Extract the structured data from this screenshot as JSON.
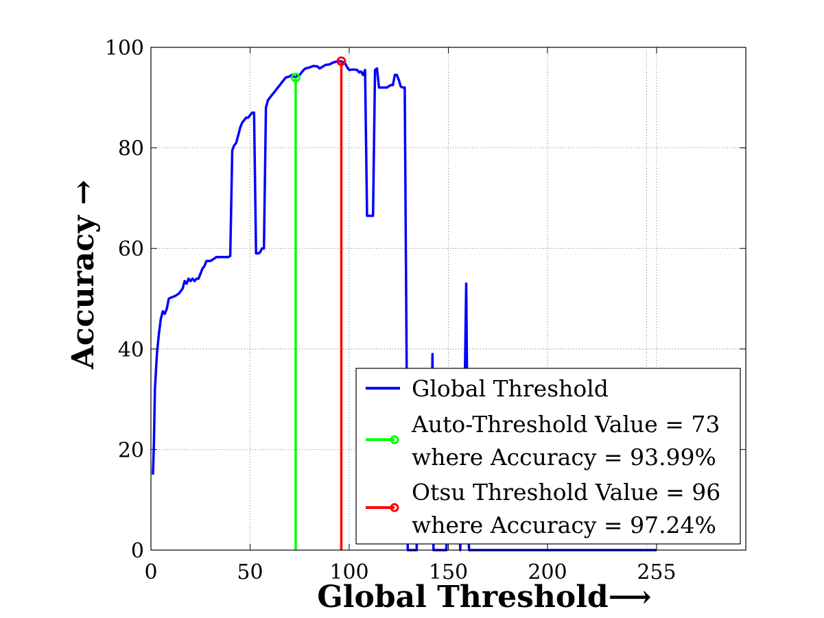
{
  "chart_data": {
    "type": "line",
    "xlabel": "Global Threshold⟶",
    "ylabel": "Accuracy →",
    "xlim": [
      0,
      300
    ],
    "ylim": [
      0,
      100
    ],
    "grid": true,
    "legend_position": "bottom-right",
    "x_ticks": [
      {
        "value": 0,
        "label": "0"
      },
      {
        "value": 50,
        "label": "50"
      },
      {
        "value": 100,
        "label": "100"
      },
      {
        "value": 150,
        "label": "150"
      },
      {
        "value": 200,
        "label": "200"
      },
      {
        "value": 255,
        "label": "255"
      }
    ],
    "y_ticks": [
      {
        "value": 0,
        "label": "0"
      },
      {
        "value": 20,
        "label": "20"
      },
      {
        "value": 40,
        "label": "40"
      },
      {
        "value": 60,
        "label": "60"
      },
      {
        "value": 80,
        "label": "80"
      },
      {
        "value": 100,
        "label": "100"
      }
    ],
    "series": [
      {
        "name": "Global Threshold",
        "color": "#0000ff",
        "points": [
          [
            1,
            15
          ],
          [
            1.5,
            21
          ],
          [
            2,
            32
          ],
          [
            3,
            39
          ],
          [
            4,
            43
          ],
          [
            5,
            46
          ],
          [
            6,
            47.5
          ],
          [
            7,
            47
          ],
          [
            8,
            48
          ],
          [
            9,
            50
          ],
          [
            10,
            50.2
          ],
          [
            12,
            50.5
          ],
          [
            14,
            51
          ],
          [
            16,
            52
          ],
          [
            17,
            53.5
          ],
          [
            18,
            53
          ],
          [
            19,
            54
          ],
          [
            20,
            53.5
          ],
          [
            21,
            54
          ],
          [
            22,
            53.5
          ],
          [
            23,
            54
          ],
          [
            24,
            54
          ],
          [
            25,
            55
          ],
          [
            26,
            56
          ],
          [
            27,
            56.5
          ],
          [
            28,
            57.5
          ],
          [
            29,
            57.5
          ],
          [
            30,
            57.5
          ],
          [
            32,
            58
          ],
          [
            33,
            58.3
          ],
          [
            34,
            58.3
          ],
          [
            36,
            58.3
          ],
          [
            38,
            58.3
          ],
          [
            39,
            58.3
          ],
          [
            40,
            58.5
          ],
          [
            41,
            79.5
          ],
          [
            42,
            80.5
          ],
          [
            43,
            81
          ],
          [
            44,
            82.5
          ],
          [
            45,
            84
          ],
          [
            46,
            85
          ],
          [
            47,
            85.5
          ],
          [
            48,
            86
          ],
          [
            49,
            86
          ],
          [
            50,
            86.5
          ],
          [
            51,
            87
          ],
          [
            52,
            87
          ],
          [
            53,
            59
          ],
          [
            54,
            59
          ],
          [
            55,
            59.2
          ],
          [
            56,
            60
          ],
          [
            57,
            60
          ],
          [
            58,
            88
          ],
          [
            59,
            89.5
          ],
          [
            60,
            90
          ],
          [
            61,
            90.5
          ],
          [
            62,
            91
          ],
          [
            63,
            91.5
          ],
          [
            64,
            92
          ],
          [
            65,
            92.5
          ],
          [
            66,
            93
          ],
          [
            67,
            93.5
          ],
          [
            68,
            94
          ],
          [
            70,
            94.2
          ],
          [
            71,
            94.5
          ],
          [
            72,
            94.2
          ],
          [
            73,
            93.99
          ],
          [
            74,
            94.5
          ],
          [
            75,
            94.5
          ],
          [
            76,
            95
          ],
          [
            77,
            95.5
          ],
          [
            78,
            95.8
          ],
          [
            80,
            96
          ],
          [
            82,
            96.3
          ],
          [
            84,
            96.2
          ],
          [
            85,
            95.8
          ],
          [
            86,
            96
          ],
          [
            88,
            96.5
          ],
          [
            90,
            96.6
          ],
          [
            92,
            97
          ],
          [
            94,
            97.2
          ],
          [
            96,
            97.24
          ],
          [
            97,
            97
          ],
          [
            98,
            96.8
          ],
          [
            99,
            96
          ],
          [
            100,
            95.5
          ],
          [
            102,
            95.6
          ],
          [
            104,
            95.5
          ],
          [
            105,
            95
          ],
          [
            106,
            95.2
          ],
          [
            107,
            94.5
          ],
          [
            108,
            95.5
          ],
          [
            109,
            66.5
          ],
          [
            110,
            66.5
          ],
          [
            112,
            66.5
          ],
          [
            113,
            95.5
          ],
          [
            114,
            95.8
          ],
          [
            115,
            92
          ],
          [
            117,
            92
          ],
          [
            119,
            92
          ],
          [
            121,
            92.5
          ],
          [
            122,
            92.5
          ],
          [
            123,
            94.5
          ],
          [
            124,
            94.5
          ],
          [
            125,
            93.5
          ],
          [
            126,
            92.2
          ],
          [
            127,
            92
          ],
          [
            128,
            92
          ],
          [
            129,
            35
          ],
          [
            129.5,
            0
          ],
          [
            134,
            0
          ],
          [
            134.5,
            13
          ],
          [
            141,
            13
          ],
          [
            142,
            39
          ],
          [
            142.5,
            0
          ],
          [
            149,
            0
          ],
          [
            149.5,
            15
          ],
          [
            155,
            15
          ],
          [
            156,
            0
          ],
          [
            158,
            25
          ],
          [
            159,
            53
          ],
          [
            159.5,
            30
          ],
          [
            160,
            3
          ],
          [
            160.5,
            0
          ],
          [
            200,
            0
          ],
          [
            255,
            0
          ]
        ]
      },
      {
        "name": "Auto-Threshold Value = 73",
        "name_line2": "where Accuracy = 93.99%",
        "color": "#00ff00",
        "x": 73,
        "y": 93.99
      },
      {
        "name": "Otsu Threshold Value = 96",
        "name_line2": "where Accuracy = 97.24%",
        "color": "#ff0000",
        "x": 96,
        "y": 97.24
      }
    ]
  }
}
